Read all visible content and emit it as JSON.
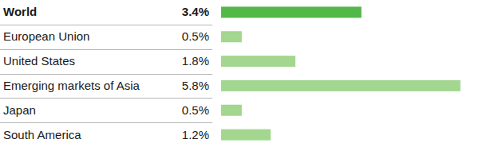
{
  "chart_data": {
    "type": "bar",
    "orientation": "horizontal",
    "categories": [
      "World",
      "European Union",
      "United States",
      "Emerging markets of Asia",
      "Japan",
      "South America"
    ],
    "values": [
      3.4,
      0.5,
      1.8,
      5.8,
      0.5,
      1.2
    ],
    "value_labels": [
      "3.4%",
      "0.5%",
      "1.8%",
      "5.8%",
      "0.5%",
      "1.2%"
    ],
    "colors": [
      "#52b848",
      "#a3d68f",
      "#a3d68f",
      "#a3d68f",
      "#a3d68f",
      "#a3d68f"
    ],
    "xlim": [
      0,
      6
    ],
    "data_labels": true,
    "tick_labels": false,
    "grid": false
  }
}
